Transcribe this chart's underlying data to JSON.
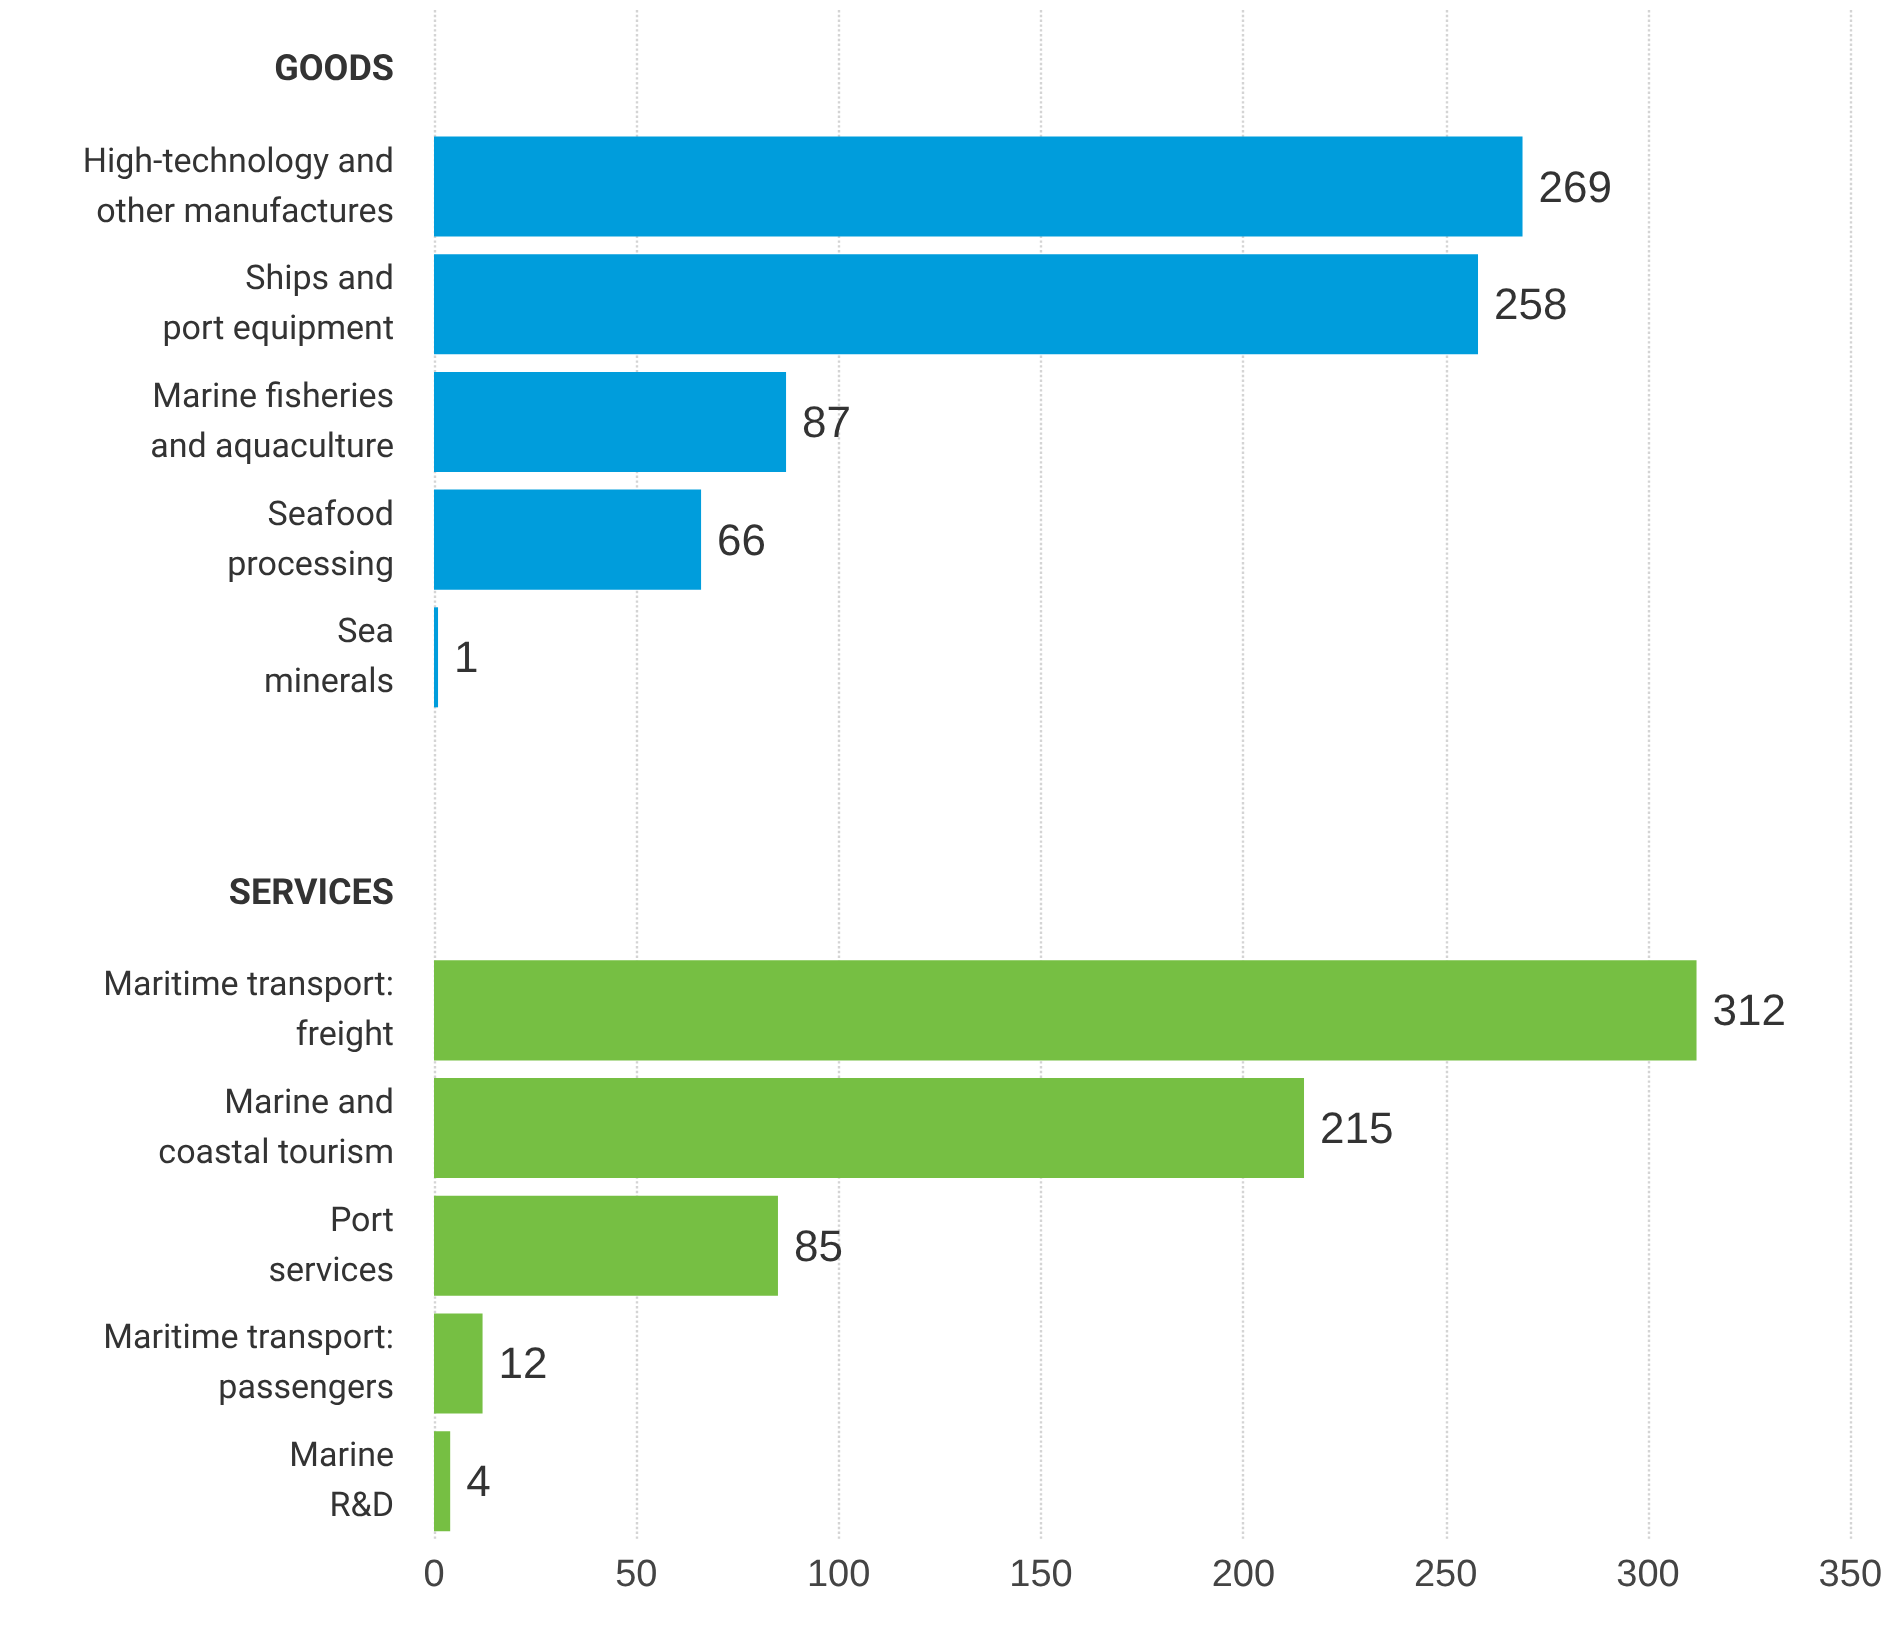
{
  "chart_data": {
    "type": "bar",
    "orientation": "horizontal",
    "categories": [
      "GOODS",
      "High-technology and\nother manufactures",
      "Ships and\nport equipment",
      "Marine fisheries\nand aquaculture",
      "Seafood\nprocessing",
      "Sea\nminerals",
      null,
      "SERVICES",
      "Maritime transport:\nfreight",
      "Marine and\ncoastal tourism",
      "Port\nservices",
      "Maritime transport:\npassengers",
      "Marine\nR&D"
    ],
    "series": [
      {
        "color": "#009ddc",
        "values": [
          null,
          269,
          258,
          87,
          66,
          1,
          null,
          null,
          null,
          null,
          null,
          null,
          null
        ]
      },
      {
        "color": "#76bf43",
        "values": [
          null,
          null,
          null,
          null,
          null,
          null,
          null,
          null,
          312,
          215,
          85,
          12,
          4
        ]
      }
    ],
    "xlim": [
      0,
      350
    ],
    "xticks": [
      0,
      50,
      100,
      150,
      200,
      250,
      300,
      350
    ],
    "grid": "x",
    "data_labels": true
  }
}
